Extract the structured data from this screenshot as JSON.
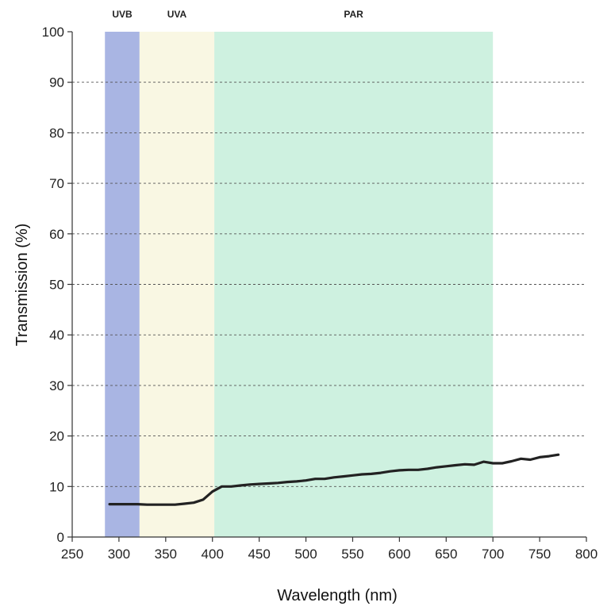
{
  "chart_data": {
    "type": "line",
    "title": "",
    "xlabel": "Wavelength (nm)",
    "ylabel": "Transmission (%)",
    "xlim": [
      250,
      800
    ],
    "ylim": [
      0,
      100
    ],
    "xticks": [
      250,
      300,
      350,
      400,
      450,
      500,
      550,
      600,
      650,
      700,
      750,
      800
    ],
    "yticks": [
      0,
      10,
      20,
      30,
      40,
      50,
      60,
      70,
      80,
      90,
      100
    ],
    "grid": "horizontal dashed",
    "bands": [
      {
        "label": "UVB",
        "range": [
          285,
          322
        ],
        "color": "#9aa8de"
      },
      {
        "label": "UVA",
        "range": [
          322,
          402
        ],
        "color": "#f8f6de"
      },
      {
        "label": "PAR",
        "range": [
          402,
          700
        ],
        "color": "#c5eedb"
      }
    ],
    "series": [
      {
        "color": "#222222",
        "x": [
          290,
          300,
          310,
          320,
          330,
          340,
          350,
          360,
          370,
          380,
          390,
          400,
          410,
          420,
          430,
          440,
          450,
          460,
          470,
          480,
          490,
          500,
          510,
          520,
          530,
          540,
          550,
          560,
          570,
          580,
          590,
          600,
          610,
          620,
          630,
          640,
          650,
          660,
          670,
          680,
          690,
          700,
          710,
          720,
          730,
          740,
          750,
          760,
          770
        ],
        "y": [
          6.5,
          6.5,
          6.5,
          6.5,
          6.4,
          6.4,
          6.4,
          6.4,
          6.6,
          6.8,
          7.4,
          9.0,
          10.0,
          10.0,
          10.2,
          10.4,
          10.5,
          10.6,
          10.7,
          10.9,
          11.0,
          11.2,
          11.5,
          11.5,
          11.8,
          12.0,
          12.2,
          12.4,
          12.5,
          12.7,
          13.0,
          13.2,
          13.3,
          13.3,
          13.5,
          13.8,
          14.0,
          14.2,
          14.4,
          14.3,
          14.9,
          14.6,
          14.6,
          15.0,
          15.5,
          15.3,
          15.8,
          16.0,
          16.3
        ]
      }
    ]
  }
}
